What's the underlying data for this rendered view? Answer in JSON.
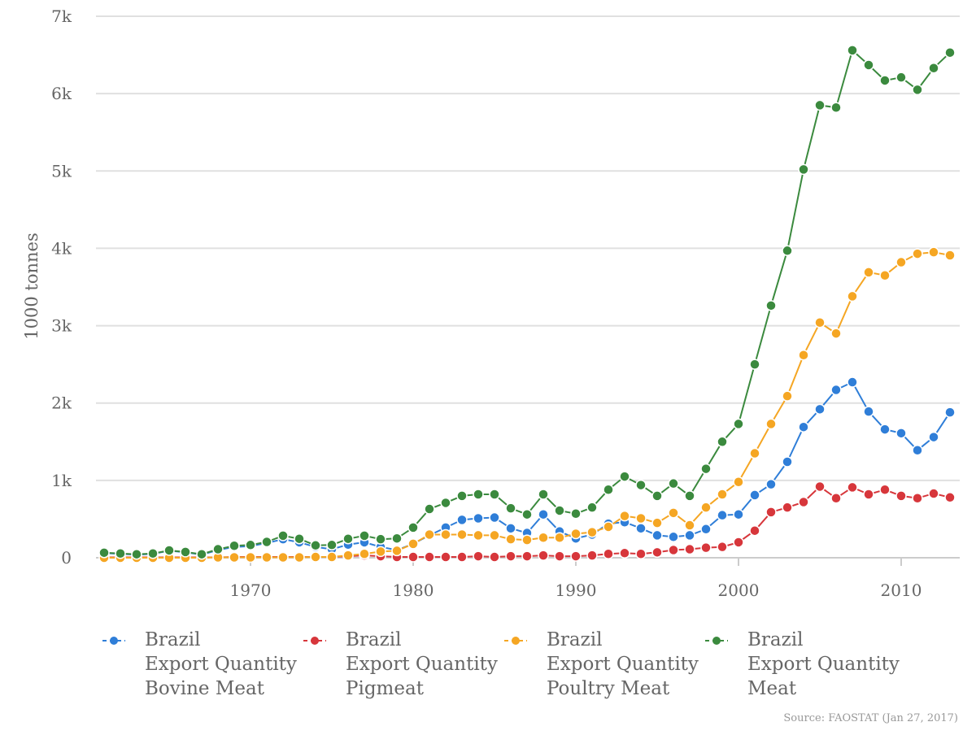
{
  "chart_data": {
    "type": "line",
    "title": "",
    "xlabel": "",
    "ylabel": "1000 tonnes",
    "xlim": [
      1961,
      2013
    ],
    "ylim": [
      0,
      7000
    ],
    "x_ticks": [
      "1970",
      "1980",
      "1990",
      "2000",
      "2010"
    ],
    "y_ticks": [
      "0",
      "1k",
      "2k",
      "3k",
      "4k",
      "5k",
      "6k",
      "7k"
    ],
    "grid": "horizontal",
    "legend_position": "bottom",
    "x": [
      1961,
      1962,
      1963,
      1964,
      1965,
      1966,
      1967,
      1968,
      1969,
      1970,
      1971,
      1972,
      1973,
      1974,
      1975,
      1976,
      1977,
      1978,
      1979,
      1980,
      1981,
      1982,
      1983,
      1984,
      1985,
      1986,
      1987,
      1988,
      1989,
      1990,
      1991,
      1992,
      1993,
      1994,
      1995,
      1996,
      1997,
      1998,
      1999,
      2000,
      2001,
      2002,
      2003,
      2004,
      2005,
      2006,
      2007,
      2008,
      2009,
      2010,
      2011,
      2012,
      2013
    ],
    "series": [
      {
        "name": "Brazil Export Quantity Bovine Meat",
        "name_lines": [
          "Brazil",
          "Export Quantity",
          "Bovine Meat"
        ],
        "color": "#2f7ed8",
        "values": [
          60,
          50,
          40,
          50,
          90,
          70,
          40,
          100,
          140,
          150,
          190,
          240,
          200,
          140,
          110,
          170,
          200,
          140,
          100,
          180,
          290,
          390,
          490,
          510,
          520,
          380,
          320,
          560,
          340,
          250,
          300,
          440,
          460,
          380,
          290,
          270,
          290,
          370,
          550,
          560,
          810,
          950,
          1240,
          1690,
          1920,
          2170,
          2270,
          1890,
          1660,
          1610,
          1390,
          1560,
          1880
        ]
      },
      {
        "name": "Brazil Export Quantity Pigmeat",
        "name_lines": [
          "Brazil",
          "Export Quantity",
          "Pigmeat"
        ],
        "color": "#d7363b",
        "values": [
          5,
          5,
          5,
          5,
          5,
          5,
          5,
          5,
          10,
          10,
          10,
          10,
          10,
          10,
          10,
          20,
          30,
          20,
          10,
          10,
          10,
          10,
          10,
          20,
          10,
          20,
          20,
          30,
          20,
          20,
          30,
          50,
          60,
          50,
          70,
          100,
          110,
          130,
          140,
          200,
          350,
          590,
          650,
          720,
          920,
          770,
          910,
          820,
          880,
          800,
          770,
          830,
          780
        ]
      },
      {
        "name": "Brazil Export Quantity Poultry Meat",
        "name_lines": [
          "Brazil",
          "Export Quantity",
          "Poultry Meat"
        ],
        "color": "#f5a623",
        "values": [
          0,
          0,
          0,
          0,
          0,
          0,
          0,
          5,
          5,
          5,
          5,
          5,
          5,
          10,
          10,
          30,
          50,
          80,
          90,
          180,
          300,
          300,
          300,
          290,
          290,
          240,
          230,
          260,
          260,
          310,
          330,
          400,
          540,
          510,
          450,
          580,
          420,
          650,
          820,
          980,
          1350,
          1730,
          2090,
          2620,
          3040,
          2900,
          3380,
          3690,
          3650,
          3820,
          3930,
          3950,
          3910
        ]
      },
      {
        "name": "Brazil Export Quantity Meat",
        "name_lines": [
          "Brazil",
          "Export Quantity",
          "Meat"
        ],
        "color": "#3b8a3e",
        "values": [
          65,
          55,
          45,
          55,
          95,
          75,
          45,
          110,
          155,
          165,
          205,
          285,
          245,
          160,
          165,
          245,
          285,
          240,
          250,
          390,
          630,
          710,
          800,
          820,
          820,
          640,
          560,
          820,
          610,
          570,
          650,
          880,
          1050,
          940,
          800,
          960,
          800,
          1150,
          1500,
          1730,
          2500,
          3260,
          3970,
          5020,
          5850,
          5820,
          6560,
          6370,
          6170,
          6210,
          6050,
          6330,
          6530
        ]
      }
    ]
  },
  "source": "Source: FAOSTAT (Jan 27, 2017)"
}
